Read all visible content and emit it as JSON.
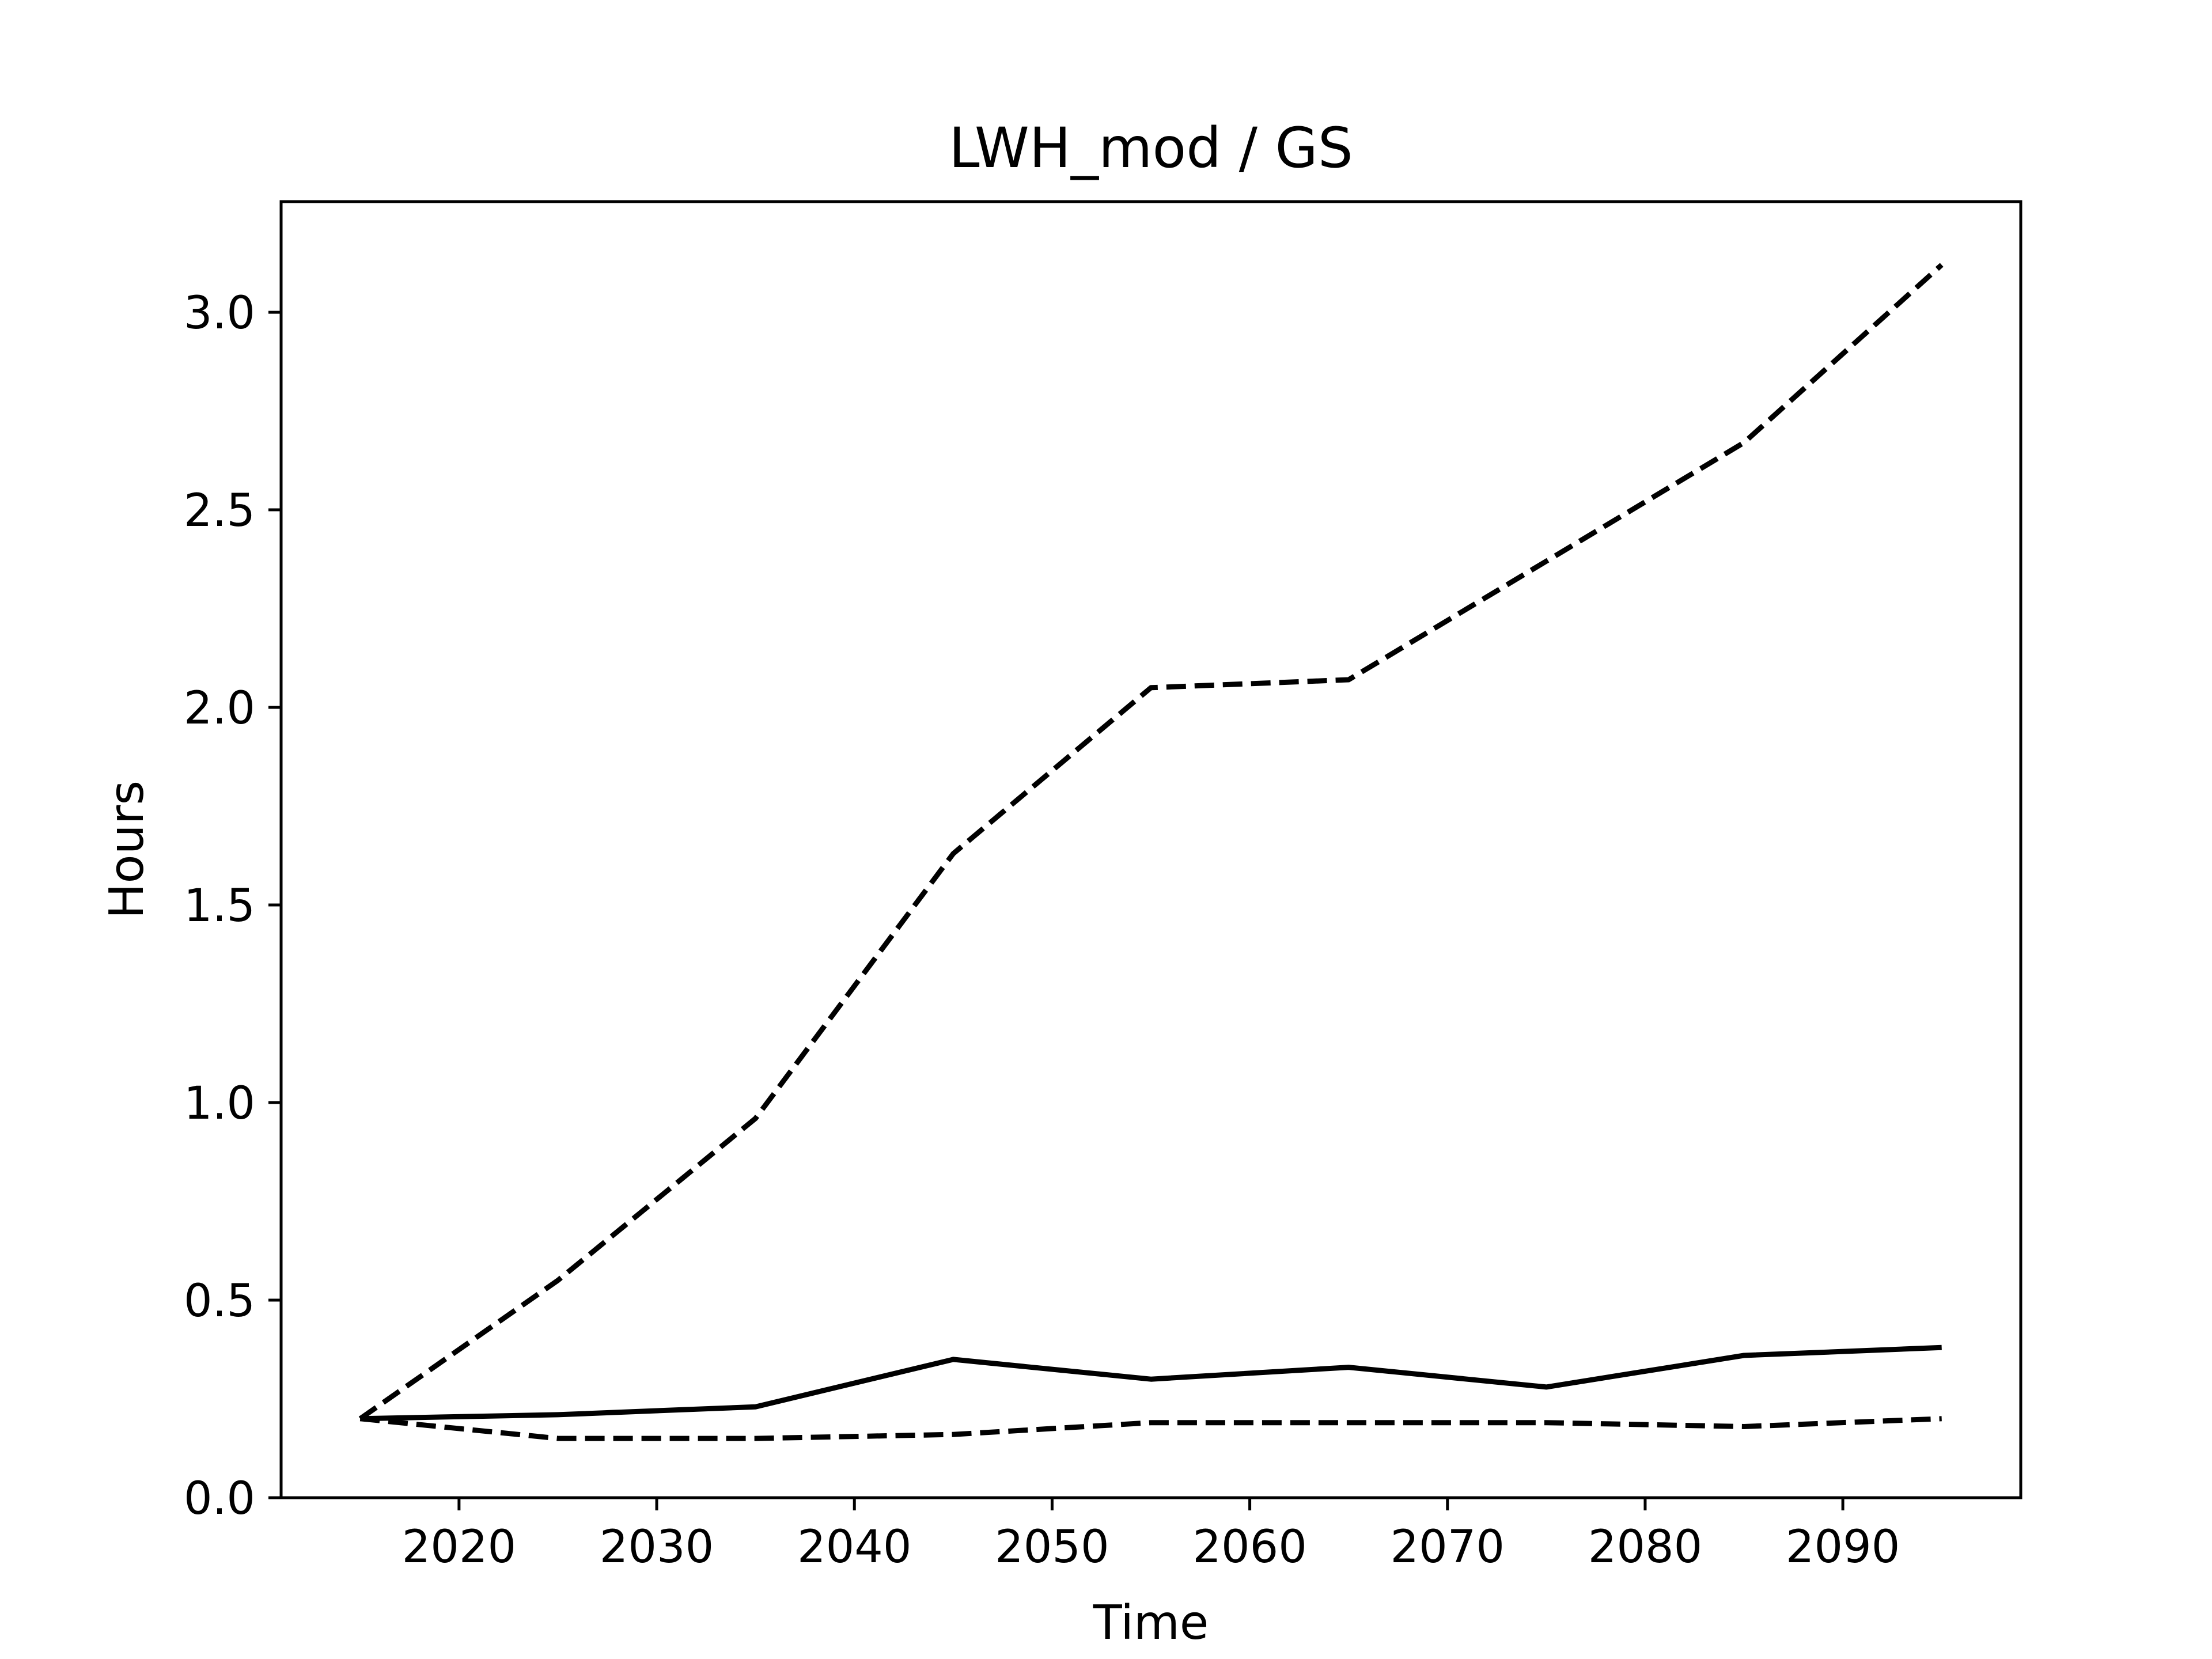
{
  "chart_data": {
    "type": "line",
    "title": "LWH_mod / GS",
    "xlabel": "Time",
    "ylabel": "Hours",
    "xlim": [
      2011,
      2099
    ],
    "ylim": [
      0.0,
      3.28
    ],
    "grid": false,
    "x_ticks": [
      2020,
      2030,
      2040,
      2050,
      2060,
      2070,
      2080,
      2090
    ],
    "x_tick_labels": [
      "2020",
      "2030",
      "2040",
      "2050",
      "2060",
      "2070",
      "2080",
      "2090"
    ],
    "y_ticks": [
      0.0,
      0.5,
      1.0,
      1.5,
      2.0,
      2.5,
      3.0
    ],
    "y_tick_labels": [
      "0.0",
      "0.5",
      "1.0",
      "1.5",
      "2.0",
      "2.5",
      "3.0"
    ],
    "x": [
      2015,
      2025,
      2035,
      2045,
      2055,
      2065,
      2075,
      2085,
      2095
    ],
    "series": [
      {
        "line_style": "dashed",
        "color": "#000000",
        "values": [
          0.2,
          0.55,
          0.96,
          1.63,
          2.05,
          2.07,
          2.37,
          2.67,
          3.12
        ]
      },
      {
        "line_style": "solid",
        "color": "#000000",
        "values": [
          0.2,
          0.21,
          0.23,
          0.35,
          0.3,
          0.33,
          0.28,
          0.36,
          0.38
        ]
      },
      {
        "line_style": "dashed",
        "color": "#000000",
        "values": [
          0.2,
          0.15,
          0.15,
          0.16,
          0.19,
          0.19,
          0.19,
          0.18,
          0.2
        ]
      }
    ]
  }
}
